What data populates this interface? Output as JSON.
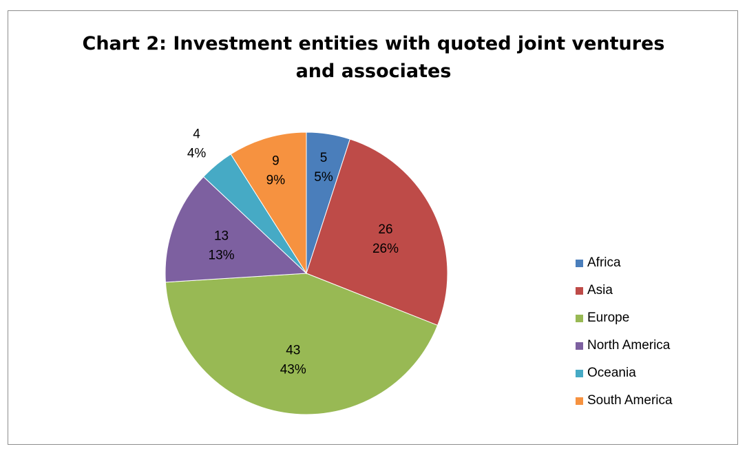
{
  "chart_data": {
    "type": "pie",
    "title_lines": [
      "Chart 2: Investment entities with quoted joint ventures",
      "and associates"
    ],
    "categories": [
      "Africa",
      "Asia",
      "Europe",
      "North America",
      "Oceania",
      "South America"
    ],
    "values": [
      5,
      26,
      43,
      13,
      4,
      9
    ],
    "percent_labels": [
      "5%",
      "26%",
      "43%",
      "13%",
      "4%",
      "9%"
    ],
    "colors": [
      "#4a7ebb",
      "#be4b48",
      "#98b954",
      "#7d60a0",
      "#46aac5",
      "#f69240"
    ],
    "start_angle_deg": 0,
    "direction": "clockwise",
    "data_labels": "value and percentage",
    "legend_position": "right"
  }
}
